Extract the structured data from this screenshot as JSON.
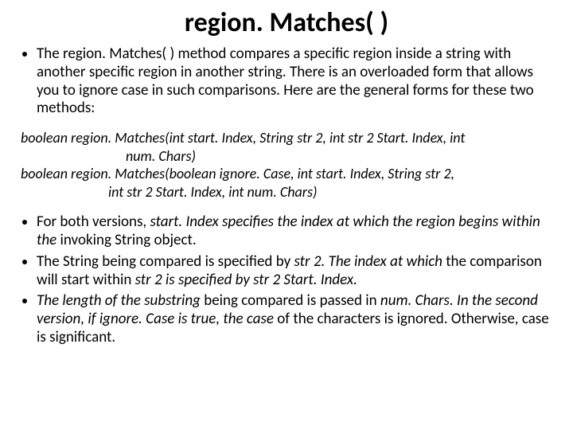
{
  "title": "region. Matches( )",
  "intro_bullet": "The region. Matches( ) method compares a specific region inside a string with another specific region in another string. There is an overloaded form that allows you to ignore case in such comparisons. Here are the general forms for these two methods:",
  "code": {
    "l1": "boolean region. Matches(int start. Index, String str 2, int str 2 Start. Index, int",
    "l2": "num. Chars)",
    "l3": "boolean region. Matches(boolean ignore. Case, int start. Index, String str 2,",
    "l4": "int str 2 Start. Index, int num. Chars)"
  },
  "b1_a": "For both versions, ",
  "b1_b": "start. Index specifies the index at which the region begins within the ",
  "b1_c": "invoking String object.",
  "b2_a": "The String being compared is specified by ",
  "b2_b": "str 2. The index at which ",
  "b2_c": "the comparison will start within ",
  "b2_d": "str 2 is specified by str 2 Start. Index.",
  "b3_a": "The length of the substring ",
  "b3_b": "being compared is passed in ",
  "b3_c": "num. Chars. In the second version, if ignore. Case is true, the case ",
  "b3_d": "of the characters is ignored. Otherwise, case is significant."
}
